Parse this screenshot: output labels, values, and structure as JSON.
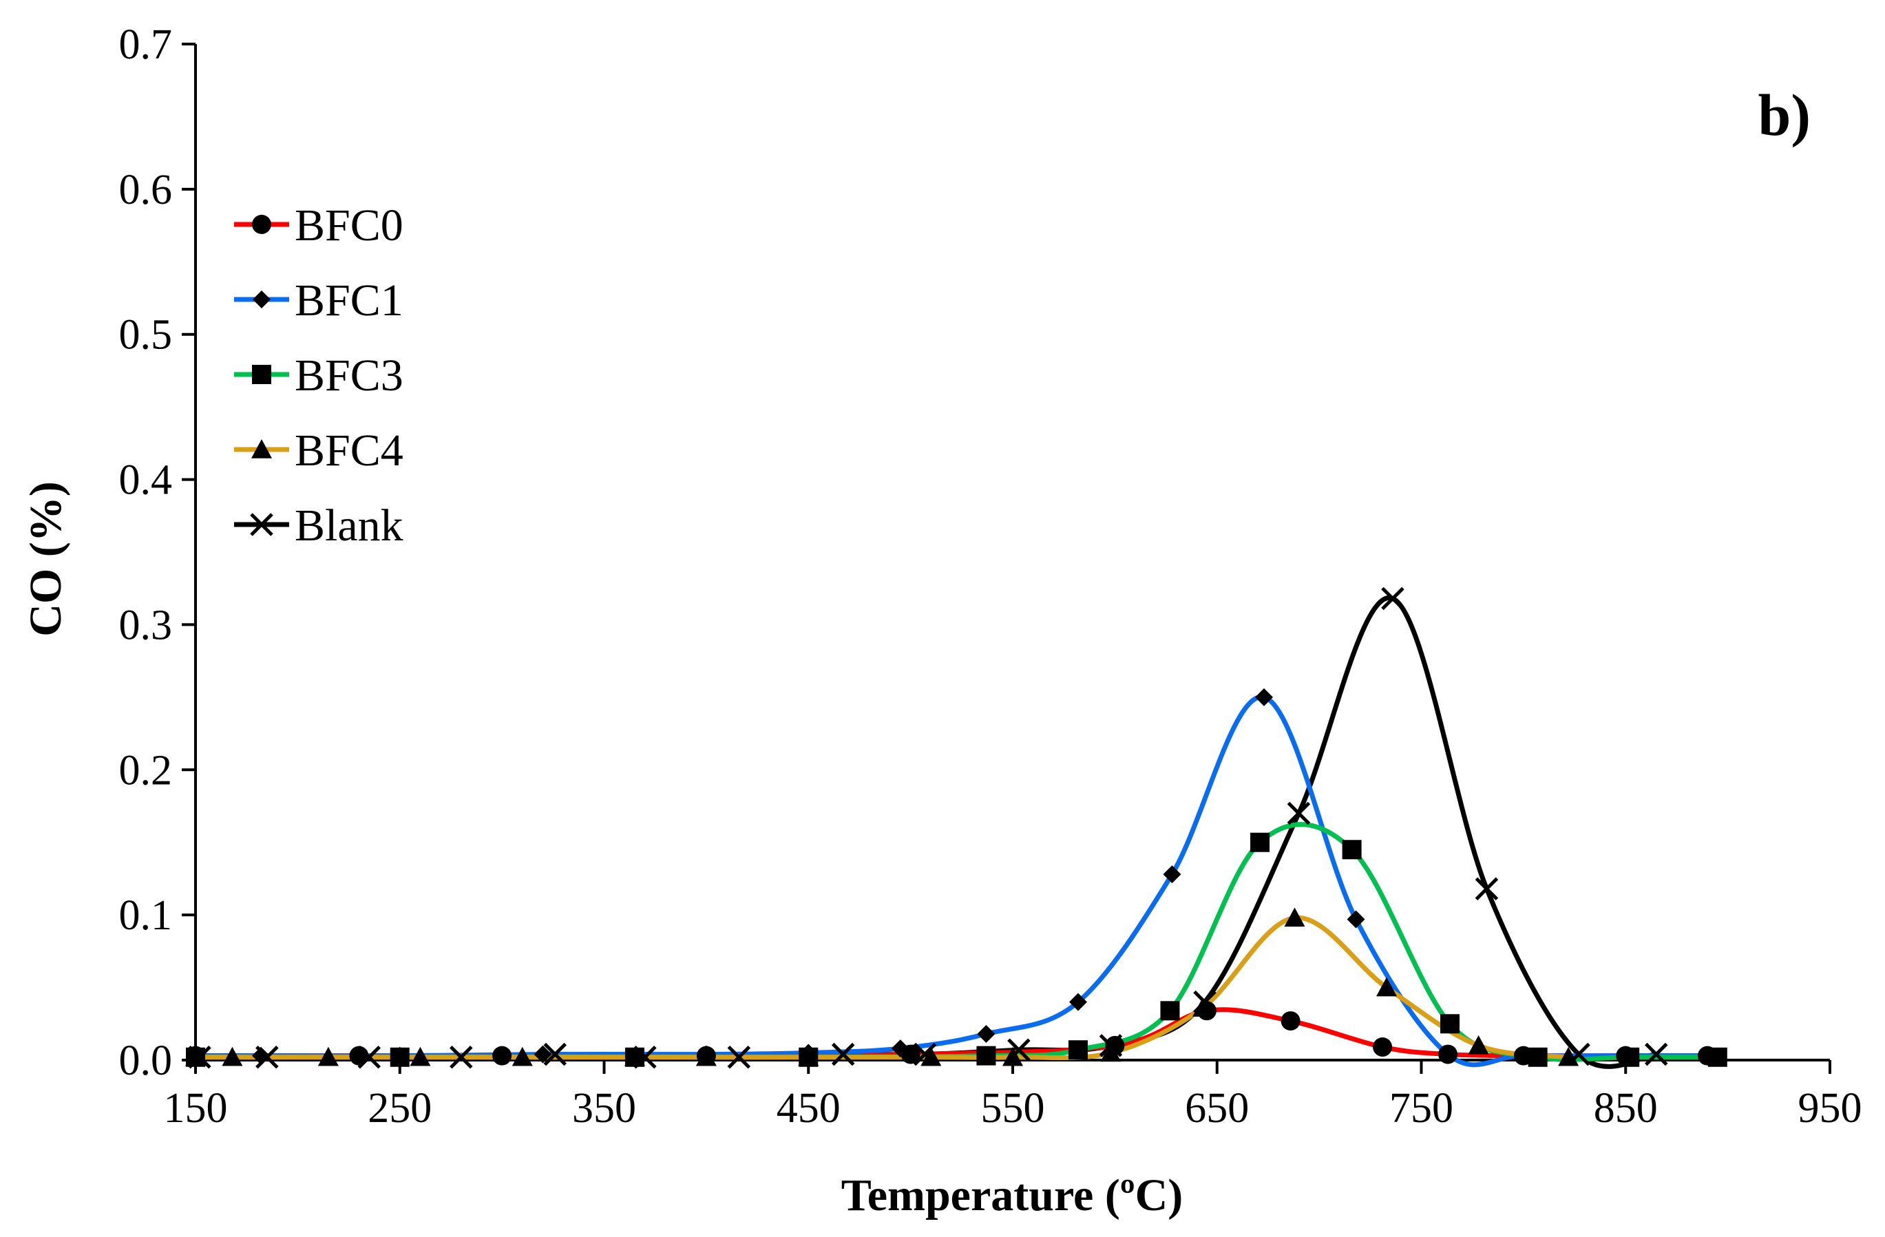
{
  "chart_data": {
    "type": "line",
    "title": "",
    "panel_label": "b)",
    "xlabel": "Temperature (ºC)",
    "ylabel": "CO (%)",
    "xlim": [
      150,
      950
    ],
    "ylim": [
      0,
      0.7
    ],
    "x_ticks": [
      150,
      250,
      350,
      450,
      550,
      650,
      750,
      850,
      950
    ],
    "x_tick_labels": [
      "150",
      "250",
      "350",
      "450",
      "550",
      "650",
      "750",
      "850",
      "950"
    ],
    "y_ticks": [
      0,
      0.1,
      0.2,
      0.3,
      0.4,
      0.5,
      0.6,
      0.7
    ],
    "y_tick_labels": [
      "0.0",
      "0.1",
      "0.2",
      "0.3",
      "0.4",
      "0.5",
      "0.6",
      "0.7"
    ],
    "grid": false,
    "legend_position": "upper-left",
    "series": [
      {
        "name": "BFC0",
        "color": "#ff0000",
        "marker": "circle",
        "x": [
          150,
          230,
          300,
          400,
          500,
          600,
          645,
          686,
          731,
          763,
          800,
          850,
          890
        ],
        "y": [
          0.003,
          0.003,
          0.003,
          0.003,
          0.004,
          0.01,
          0.034,
          0.027,
          0.009,
          0.004,
          0.003,
          0.003,
          0.003
        ]
      },
      {
        "name": "BFC1",
        "color": "#0a6cf0",
        "marker": "diamond",
        "x": [
          150,
          182,
          250,
          320,
          400,
          450,
          495,
          537,
          582,
          628,
          673,
          718,
          763,
          800,
          850,
          890
        ],
        "y": [
          0.003,
          0.003,
          0.003,
          0.004,
          0.004,
          0.005,
          0.008,
          0.018,
          0.04,
          0.128,
          0.25,
          0.097,
          0.004,
          0.003,
          0.003,
          0.003
        ]
      },
      {
        "name": "BFC3",
        "color": "#00c050",
        "marker": "square",
        "x": [
          150,
          250,
          365,
          450,
          537,
          582,
          627,
          671,
          716,
          764,
          807,
          852,
          895
        ],
        "y": [
          0.002,
          0.002,
          0.002,
          0.002,
          0.003,
          0.007,
          0.034,
          0.15,
          0.145,
          0.025,
          0.002,
          0.002,
          0.002
        ]
      },
      {
        "name": "BFC4",
        "color": "#d9a017",
        "marker": "triangle",
        "x": [
          150,
          168,
          215,
          260,
          310,
          365,
          400,
          450,
          510,
          550,
          598,
          643,
          688,
          733,
          778,
          822
        ],
        "y": [
          0.002,
          0.002,
          0.002,
          0.002,
          0.002,
          0.002,
          0.002,
          0.002,
          0.002,
          0.002,
          0.005,
          0.036,
          0.098,
          0.05,
          0.01,
          0.002
        ]
      },
      {
        "name": "Blank",
        "color": "#000000",
        "marker": "x",
        "x": [
          152,
          185,
          235,
          280,
          326,
          370,
          416,
          467,
          507,
          553,
          598,
          644,
          690,
          736,
          782,
          827,
          865
        ],
        "y": [
          0.002,
          0.002,
          0.002,
          0.002,
          0.004,
          0.002,
          0.002,
          0.004,
          0.004,
          0.007,
          0.01,
          0.04,
          0.17,
          0.318,
          0.118,
          0.004,
          0.004
        ]
      }
    ]
  }
}
